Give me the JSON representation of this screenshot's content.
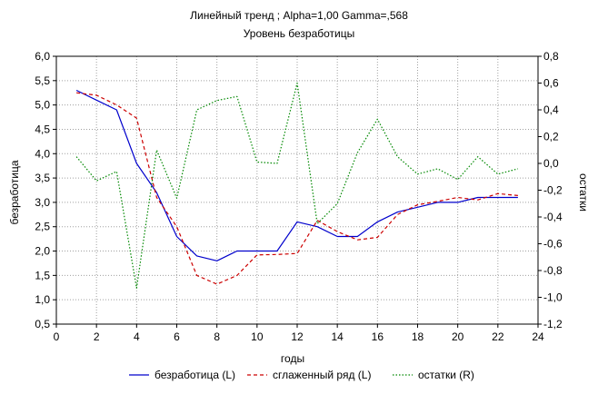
{
  "chart_data": {
    "type": "line",
    "title": "Линейный тренд ; Alpha=1,00 Gamma=,568",
    "subtitle": "Уровень безработицы",
    "xlabel": "годы",
    "ylabel_left": "безработица",
    "ylabel_right": "остатки",
    "xlim": [
      0,
      24
    ],
    "x_ticks": [
      "0",
      "2",
      "4",
      "6",
      "8",
      "10",
      "12",
      "14",
      "16",
      "18",
      "20",
      "22",
      "24"
    ],
    "ylim_left": [
      0.5,
      6.0
    ],
    "y_ticks_left": [
      "0,5",
      "1,0",
      "1,5",
      "2,0",
      "2,5",
      "3,0",
      "3,5",
      "4,0",
      "4,5",
      "5,0",
      "5,5",
      "6,0"
    ],
    "ylim_right": [
      -1.2,
      0.8
    ],
    "y_ticks_right": [
      "-1,2",
      "-1,0",
      "-0,8",
      "-0,6",
      "-0,4",
      "-0,2",
      "0,0",
      "0,2",
      "0,4",
      "0,6",
      "0,8"
    ],
    "grid": true,
    "legend_position": "bottom",
    "x": [
      1,
      2,
      3,
      4,
      5,
      6,
      7,
      8,
      9,
      10,
      11,
      12,
      13,
      14,
      15,
      16,
      17,
      18,
      19,
      20,
      21,
      22,
      23
    ],
    "series": [
      {
        "name": "безработица (L)",
        "axis": "left",
        "color": "#0000cc",
        "style": "solid",
        "values": [
          5.3,
          5.1,
          4.9,
          3.8,
          3.2,
          2.3,
          1.9,
          1.8,
          2.0,
          2.0,
          2.0,
          2.6,
          2.5,
          2.3,
          2.3,
          2.6,
          2.8,
          2.9,
          3.0,
          3.0,
          3.1,
          3.1,
          3.1
        ]
      },
      {
        "name": "сглаженный ряд (L)",
        "axis": "left",
        "color": "#cc0000",
        "style": "dashed",
        "values": [
          5.25,
          5.2,
          5.0,
          4.73,
          3.1,
          2.5,
          1.5,
          1.32,
          1.5,
          1.92,
          1.93,
          1.95,
          2.63,
          2.4,
          2.23,
          2.28,
          2.75,
          2.95,
          3.02,
          3.1,
          3.05,
          3.18,
          3.14
        ]
      },
      {
        "name": "остатки (R)",
        "axis": "right",
        "color": "#008800",
        "style": "dotted",
        "values": [
          0.05,
          -0.13,
          -0.06,
          -0.93,
          0.1,
          -0.26,
          0.4,
          0.47,
          0.5,
          0.01,
          0.0,
          0.6,
          -0.45,
          -0.3,
          0.08,
          0.33,
          0.05,
          -0.08,
          -0.04,
          -0.12,
          0.05,
          -0.08,
          -0.04
        ]
      }
    ]
  }
}
